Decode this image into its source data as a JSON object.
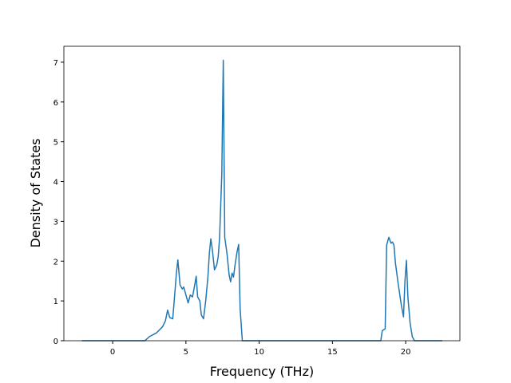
{
  "chart_data": {
    "type": "line",
    "x_label": "Frequency (THz)",
    "y_label": "Density of States",
    "xlim": [
      -3.33,
      23.7
    ],
    "ylim": [
      0,
      7.4
    ],
    "xticks": [
      0,
      5,
      10,
      15,
      20
    ],
    "yticks": [
      0,
      1,
      2,
      3,
      4,
      5,
      6,
      7
    ],
    "grid": false,
    "series": [
      {
        "color": "#1f77b4",
        "x": [
          -2.1,
          2.2,
          2.5,
          3.0,
          3.4,
          3.6,
          3.75,
          3.9,
          4.1,
          4.2,
          4.35,
          4.45,
          4.6,
          4.75,
          4.85,
          5.0,
          5.15,
          5.3,
          5.45,
          5.6,
          5.7,
          5.8,
          5.95,
          6.05,
          6.2,
          6.35,
          6.5,
          6.6,
          6.7,
          6.8,
          6.95,
          7.1,
          7.2,
          7.3,
          7.45,
          7.55,
          7.65,
          7.8,
          7.95,
          8.05,
          8.15,
          8.25,
          8.35,
          8.5,
          8.6,
          8.7,
          8.85,
          18.3,
          18.4,
          18.6,
          18.7,
          18.85,
          19.0,
          19.1,
          19.2,
          19.3,
          19.5,
          19.7,
          19.85,
          19.95,
          20.05,
          20.15,
          20.3,
          20.45,
          20.6,
          22.5
        ],
        "values": [
          0,
          0,
          0.1,
          0.2,
          0.35,
          0.5,
          0.77,
          0.58,
          0.55,
          1.0,
          1.7,
          2.03,
          1.4,
          1.3,
          1.35,
          1.15,
          0.95,
          1.15,
          1.1,
          1.4,
          1.62,
          1.1,
          1.0,
          0.65,
          0.55,
          1.0,
          1.6,
          2.2,
          2.56,
          2.3,
          1.78,
          1.9,
          2.1,
          2.6,
          4.2,
          7.05,
          2.6,
          2.2,
          1.65,
          1.48,
          1.7,
          1.6,
          1.9,
          2.25,
          2.42,
          0.8,
          0,
          0,
          0.25,
          0.3,
          2.4,
          2.6,
          2.45,
          2.48,
          2.4,
          1.95,
          1.4,
          0.9,
          0.6,
          1.5,
          2.02,
          1.1,
          0.45,
          0.1,
          0,
          0
        ]
      }
    ]
  }
}
